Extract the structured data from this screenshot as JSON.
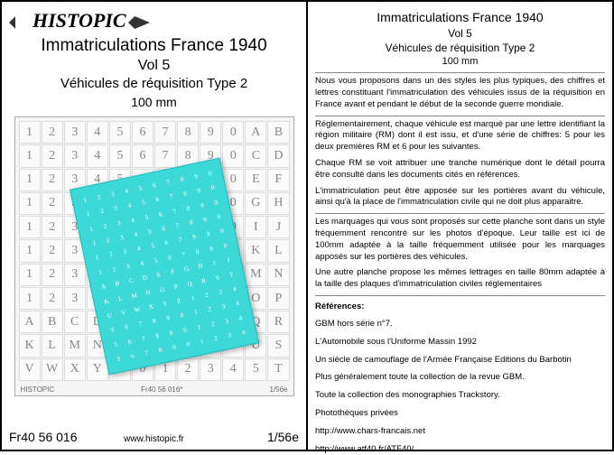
{
  "left": {
    "logo": "HISTOPIC",
    "title": "Immatriculations France 1940",
    "subtitle": "Vol 5",
    "subtitle2": "Véhicules de réquisition    Type 2",
    "size": "100 mm",
    "grid_chars": [
      "1",
      "2",
      "3",
      "4",
      "5",
      "6",
      "7",
      "8",
      "9",
      "0",
      "A",
      "B",
      "1",
      "2",
      "3",
      "4",
      "5",
      "6",
      "7",
      "8",
      "9",
      "0",
      "C",
      "D",
      "1",
      "2",
      "3",
      "4",
      "5",
      "6",
      "7",
      "8",
      "9",
      "0",
      "E",
      "F",
      "1",
      "2",
      "3",
      "4",
      "5",
      "6",
      "7",
      "8",
      "9",
      "0",
      "G",
      "H",
      "1",
      "2",
      "3",
      "4",
      "5",
      "6",
      "7",
      "8",
      "9",
      "0",
      "I",
      "J",
      "1",
      "2",
      "3",
      "4",
      "5",
      "6",
      "7",
      "8",
      "9",
      "0",
      "K",
      "L",
      "1",
      "2",
      "3",
      "4",
      "5",
      "6",
      "7",
      "8",
      "9",
      "0",
      "M",
      "N",
      "1",
      "2",
      "3",
      "4",
      "5",
      "6",
      "7",
      "8",
      "9",
      "0",
      "O",
      "P",
      "A",
      "B",
      "C",
      "D",
      "E",
      "F",
      "G",
      "H",
      "I",
      "J",
      "Q",
      "R",
      "K",
      "L",
      "M",
      "N",
      "O",
      "P",
      "Q",
      "R",
      "S",
      "T",
      "U",
      "S",
      "V",
      "W",
      "X",
      "Y",
      "Z",
      "0",
      "1",
      "2",
      "3",
      "4",
      "5",
      "T"
    ],
    "cyan_chars": [
      "1",
      "2",
      "3",
      "4",
      "5",
      "6",
      "7",
      "8",
      "9",
      "0",
      "1",
      "2",
      "3",
      "4",
      "5",
      "6",
      "7",
      "8",
      "9",
      "0",
      "1",
      "2",
      "3",
      "4",
      "5",
      "6",
      "7",
      "8",
      "9",
      "0",
      "1",
      "2",
      "3",
      "4",
      "5",
      "6",
      "7",
      "8",
      "9",
      "0",
      "1",
      "2",
      "3",
      "4",
      "5",
      "6",
      "7",
      "8",
      "9",
      "0",
      "1",
      "2",
      "3",
      "4",
      "5",
      "6",
      "7",
      "8",
      "9",
      "0",
      "A",
      "B",
      "C",
      "D",
      "E",
      "F",
      "G",
      "H",
      "I",
      "J",
      "K",
      "L",
      "M",
      "N",
      "O",
      "P",
      "Q",
      "R",
      "S",
      "T",
      "U",
      "V",
      "W",
      "X",
      "Y",
      "Z",
      "1",
      "2",
      "3",
      "4",
      "5",
      "6",
      "7",
      "8",
      "9",
      "0",
      "1",
      "2",
      "3",
      "4",
      "5",
      "6",
      "7",
      "8",
      "9",
      "0",
      "1",
      "2",
      "3",
      "4",
      "5",
      "6",
      "7",
      "8",
      "9",
      "0",
      "1",
      "2",
      "3",
      "4"
    ],
    "sheet_ref_left": "HISTOPIC",
    "sheet_ref_mid": "Fr40 56 016*",
    "sheet_ref_right": "1/56e",
    "product_code": "Fr40  56 016",
    "scale": "1/56e",
    "url": "www.histopic.fr"
  },
  "right": {
    "title": "Immatriculations France 1940",
    "subtitle": "Vol 5",
    "subtitle2": "Véhicules de réquisition    Type 2",
    "size": "100 mm",
    "p1": "Nous vous proposons dans un des styles les plus typiques, des chiffres et lettres constituant l'immatriculation des véhicules issus de la réquisition en France avant et pendant le début de la seconde guerre mondiale.",
    "p2": "Réglementairement, chaque véhicule est marqué par une lettre identifiant la région militaire (RM) dont il est issu, et d'une série de chiffres: 5 pour les deux premières RM et 6 pour les suivantes.",
    "p3": "Chaque RM se voit attribuer une tranche numérique dont le détail pourra être consulté dans les documents cités en références.",
    "p4": "L'immatriculation peut être apposée sur les portières avant du véhicule, ainsi qu'à la place de l'immatriculation civile qui ne doit plus apparaitre.",
    "p5": "Les marquages qui vous sont proposés sur cette planche sont dans un style fréquemment rencontré sur les photos d'époque. Leur taille est ici de 100mm adaptée à la taille fréquemment utilisée pour les marquages apposés sur les portières des véhicules.",
    "p6": "Une autre planche propose les mêmes lettrages en taille 80mm adaptée à la taille des plaques d'immatriculation civiles réglementaires",
    "ref_title": "Références:",
    "r1": "GBM hors série n°7.",
    "r2": "L'Automobile sous l'Uniforme    Massin 1992",
    "r3": "Un siècle de camouflage de l'Armée Française  Editions du Barbotin",
    "r4": "Plus généralement toute la collection de la revue GBM.",
    "r5": "Toute la collection des monographies Trackstory.",
    "r6": "Photothèques privées",
    "link1": "http://www.chars-francais.net",
    "link2": "http://www.atf40.fr/ATF40/"
  }
}
